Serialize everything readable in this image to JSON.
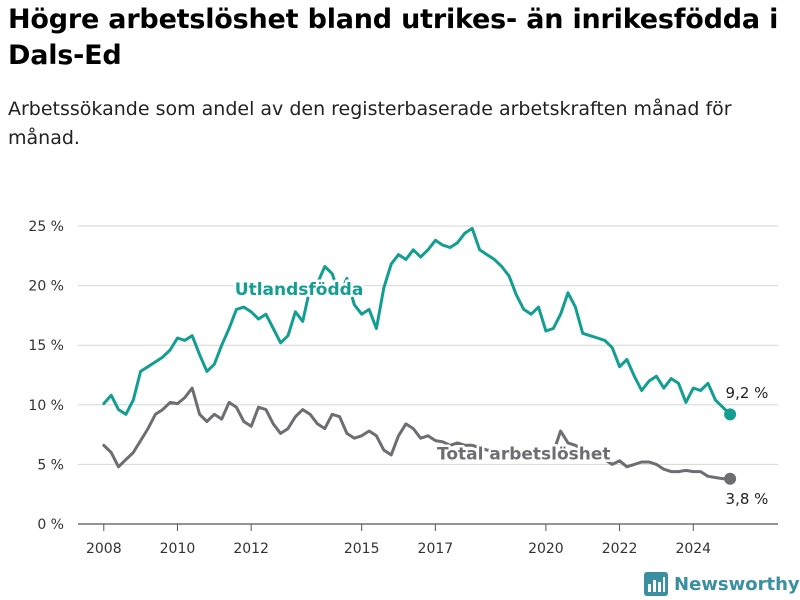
{
  "header": {
    "title": "Högre arbetslöshet bland utrikes- än inrikesfödda i Dals-Ed",
    "subtitle": "Arbetssökande som andel av den registerbaserade arbetskraften månad för månad."
  },
  "brand": {
    "name": "Newsworthy",
    "icon": "bar-chart-logo-icon",
    "color": "#3a8fa0"
  },
  "chart_data": {
    "type": "line",
    "title": "Högre arbetslöshet bland utrikes- än inrikesfödda i Dals-Ed",
    "subtitle": "Arbetssökande som andel av den registerbaserade arbetskraften månad för månad.",
    "xlabel": "",
    "ylabel": "",
    "xlim": [
      2007.3,
      2026.3
    ],
    "ylim": [
      0,
      25
    ],
    "y_ticks": [
      0,
      5,
      10,
      15,
      20,
      25
    ],
    "y_tick_labels": [
      "0 %",
      "5 %",
      "10 %",
      "15 %",
      "20 %",
      "25 %"
    ],
    "x_ticks": [
      2008,
      2010,
      2012,
      2015,
      2017,
      2020,
      2022,
      2024
    ],
    "x_tick_labels": [
      "2008",
      "2010",
      "2012",
      "2015",
      "2017",
      "2020",
      "2022",
      "2024"
    ],
    "grid": "horizontal",
    "legend": "inline labels",
    "series": [
      {
        "name": "Utlandsfödda",
        "color": "#139e92",
        "end_label": "9,2 %",
        "x": [
          2008.0,
          2008.2,
          2008.4,
          2008.6,
          2008.8,
          2009.0,
          2009.2,
          2009.4,
          2009.6,
          2009.8,
          2010.0,
          2010.2,
          2010.4,
          2010.6,
          2010.8,
          2011.0,
          2011.2,
          2011.4,
          2011.6,
          2011.8,
          2012.0,
          2012.2,
          2012.4,
          2012.6,
          2012.8,
          2013.0,
          2013.2,
          2013.4,
          2013.6,
          2013.8,
          2014.0,
          2014.2,
          2014.4,
          2014.6,
          2014.8,
          2015.0,
          2015.2,
          2015.4,
          2015.6,
          2015.8,
          2016.0,
          2016.2,
          2016.4,
          2016.6,
          2016.8,
          2017.0,
          2017.2,
          2017.4,
          2017.6,
          2017.8,
          2018.0,
          2018.2,
          2018.4,
          2018.6,
          2018.8,
          2019.0,
          2019.2,
          2019.4,
          2019.6,
          2019.8,
          2020.0,
          2020.2,
          2020.4,
          2020.6,
          2020.8,
          2021.0,
          2021.2,
          2021.4,
          2021.6,
          2021.8,
          2022.0,
          2022.2,
          2022.4,
          2022.6,
          2022.8,
          2023.0,
          2023.2,
          2023.4,
          2023.6,
          2023.8,
          2024.0,
          2024.2,
          2024.4,
          2024.6,
          2024.8,
          2025.0
        ],
        "y": [
          10.1,
          10.8,
          9.6,
          9.2,
          10.4,
          12.8,
          13.2,
          13.6,
          14.0,
          14.6,
          15.6,
          15.4,
          15.8,
          14.2,
          12.8,
          13.4,
          15.0,
          16.4,
          18.0,
          18.2,
          17.8,
          17.2,
          17.6,
          16.4,
          15.2,
          15.8,
          17.8,
          17.0,
          19.8,
          20.2,
          21.6,
          21.0,
          19.2,
          20.6,
          18.4,
          17.6,
          18.0,
          16.4,
          19.8,
          21.8,
          22.6,
          22.2,
          23.0,
          22.4,
          23.0,
          23.8,
          23.4,
          23.2,
          23.6,
          24.4,
          24.8,
          23.0,
          22.6,
          22.2,
          21.6,
          20.8,
          19.2,
          18.0,
          17.6,
          18.2,
          16.2,
          16.4,
          17.6,
          19.4,
          18.2,
          16.0,
          15.8,
          15.6,
          15.4,
          14.8,
          13.2,
          13.8,
          12.4,
          11.2,
          12.0,
          12.4,
          11.4,
          12.2,
          11.8,
          10.2,
          11.4,
          11.2,
          11.8,
          10.4,
          9.8,
          9.2
        ]
      },
      {
        "name": "Total arbetslöshet",
        "color": "#6d6d72",
        "end_label": "3,8 %",
        "x": [
          2008.0,
          2008.2,
          2008.4,
          2008.6,
          2008.8,
          2009.0,
          2009.2,
          2009.4,
          2009.6,
          2009.8,
          2010.0,
          2010.2,
          2010.4,
          2010.6,
          2010.8,
          2011.0,
          2011.2,
          2011.4,
          2011.6,
          2011.8,
          2012.0,
          2012.2,
          2012.4,
          2012.6,
          2012.8,
          2013.0,
          2013.2,
          2013.4,
          2013.6,
          2013.8,
          2014.0,
          2014.2,
          2014.4,
          2014.6,
          2014.8,
          2015.0,
          2015.2,
          2015.4,
          2015.6,
          2015.8,
          2016.0,
          2016.2,
          2016.4,
          2016.6,
          2016.8,
          2017.0,
          2017.2,
          2017.4,
          2017.6,
          2017.8,
          2018.0,
          2018.2,
          2018.4,
          2018.6,
          2018.8,
          2019.0,
          2019.2,
          2019.4,
          2019.6,
          2019.8,
          2020.0,
          2020.2,
          2020.4,
          2020.6,
          2020.8,
          2021.0,
          2021.2,
          2021.4,
          2021.6,
          2021.8,
          2022.0,
          2022.2,
          2022.4,
          2022.6,
          2022.8,
          2023.0,
          2023.2,
          2023.4,
          2023.6,
          2023.8,
          2024.0,
          2024.2,
          2024.4,
          2024.6,
          2024.8,
          2025.0
        ],
        "y": [
          6.6,
          6.0,
          4.8,
          5.4,
          6.0,
          7.0,
          8.0,
          9.2,
          9.6,
          10.2,
          10.1,
          10.6,
          11.4,
          9.2,
          8.6,
          9.2,
          8.8,
          10.2,
          9.8,
          8.6,
          8.2,
          9.8,
          9.6,
          8.4,
          7.6,
          8.0,
          9.0,
          9.6,
          9.2,
          8.4,
          8.0,
          9.2,
          9.0,
          7.6,
          7.2,
          7.4,
          7.8,
          7.4,
          6.2,
          5.8,
          7.4,
          8.4,
          8.0,
          7.2,
          7.4,
          7.0,
          6.9,
          6.6,
          6.8,
          6.6,
          6.6,
          6.4,
          6.2,
          6.2,
          6.0,
          6.1,
          5.8,
          5.6,
          5.5,
          5.4,
          5.4,
          6.0,
          7.8,
          6.8,
          6.6,
          6.2,
          5.8,
          5.6,
          5.4,
          5.0,
          5.3,
          4.8,
          5.0,
          5.2,
          5.2,
          5.0,
          4.6,
          4.4,
          4.4,
          4.5,
          4.4,
          4.4,
          4.0,
          3.9,
          3.8,
          3.8
        ]
      }
    ]
  }
}
